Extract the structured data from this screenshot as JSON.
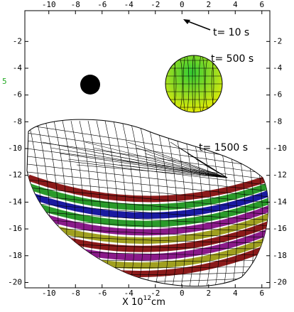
{
  "chart_data": {
    "type": "simulation",
    "ylabel": "5",
    "xlabel": "X 10",
    "xlabel_exponent": "12",
    "xlabel_unit": "cm",
    "xlim": [
      -11.8,
      6.6
    ],
    "xticks": [
      -10,
      -8,
      -6,
      -4,
      -2,
      0,
      2,
      4,
      6
    ],
    "ylim": [
      -20.4,
      0.3
    ],
    "yticks": [
      -2,
      -4,
      -6,
      -8,
      -10,
      -12,
      -14,
      -16,
      -18,
      -20
    ],
    "annotations": [
      "t= 10 s",
      "t= 500 s",
      "t= 1500 s"
    ]
  }
}
